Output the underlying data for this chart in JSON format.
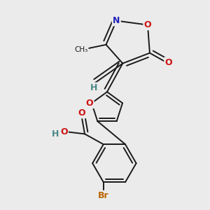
{
  "background_color": "#ebebeb",
  "figsize": [
    3.0,
    3.0
  ],
  "dpi": 100,
  "bond_color": "#1a1a1a",
  "bond_lw": 1.4,
  "atom_colors": {
    "N": "#2222bb",
    "O": "#cc1111",
    "Br": "#bb6600",
    "H": "#4a8888",
    "C": "#1a1a1a"
  }
}
